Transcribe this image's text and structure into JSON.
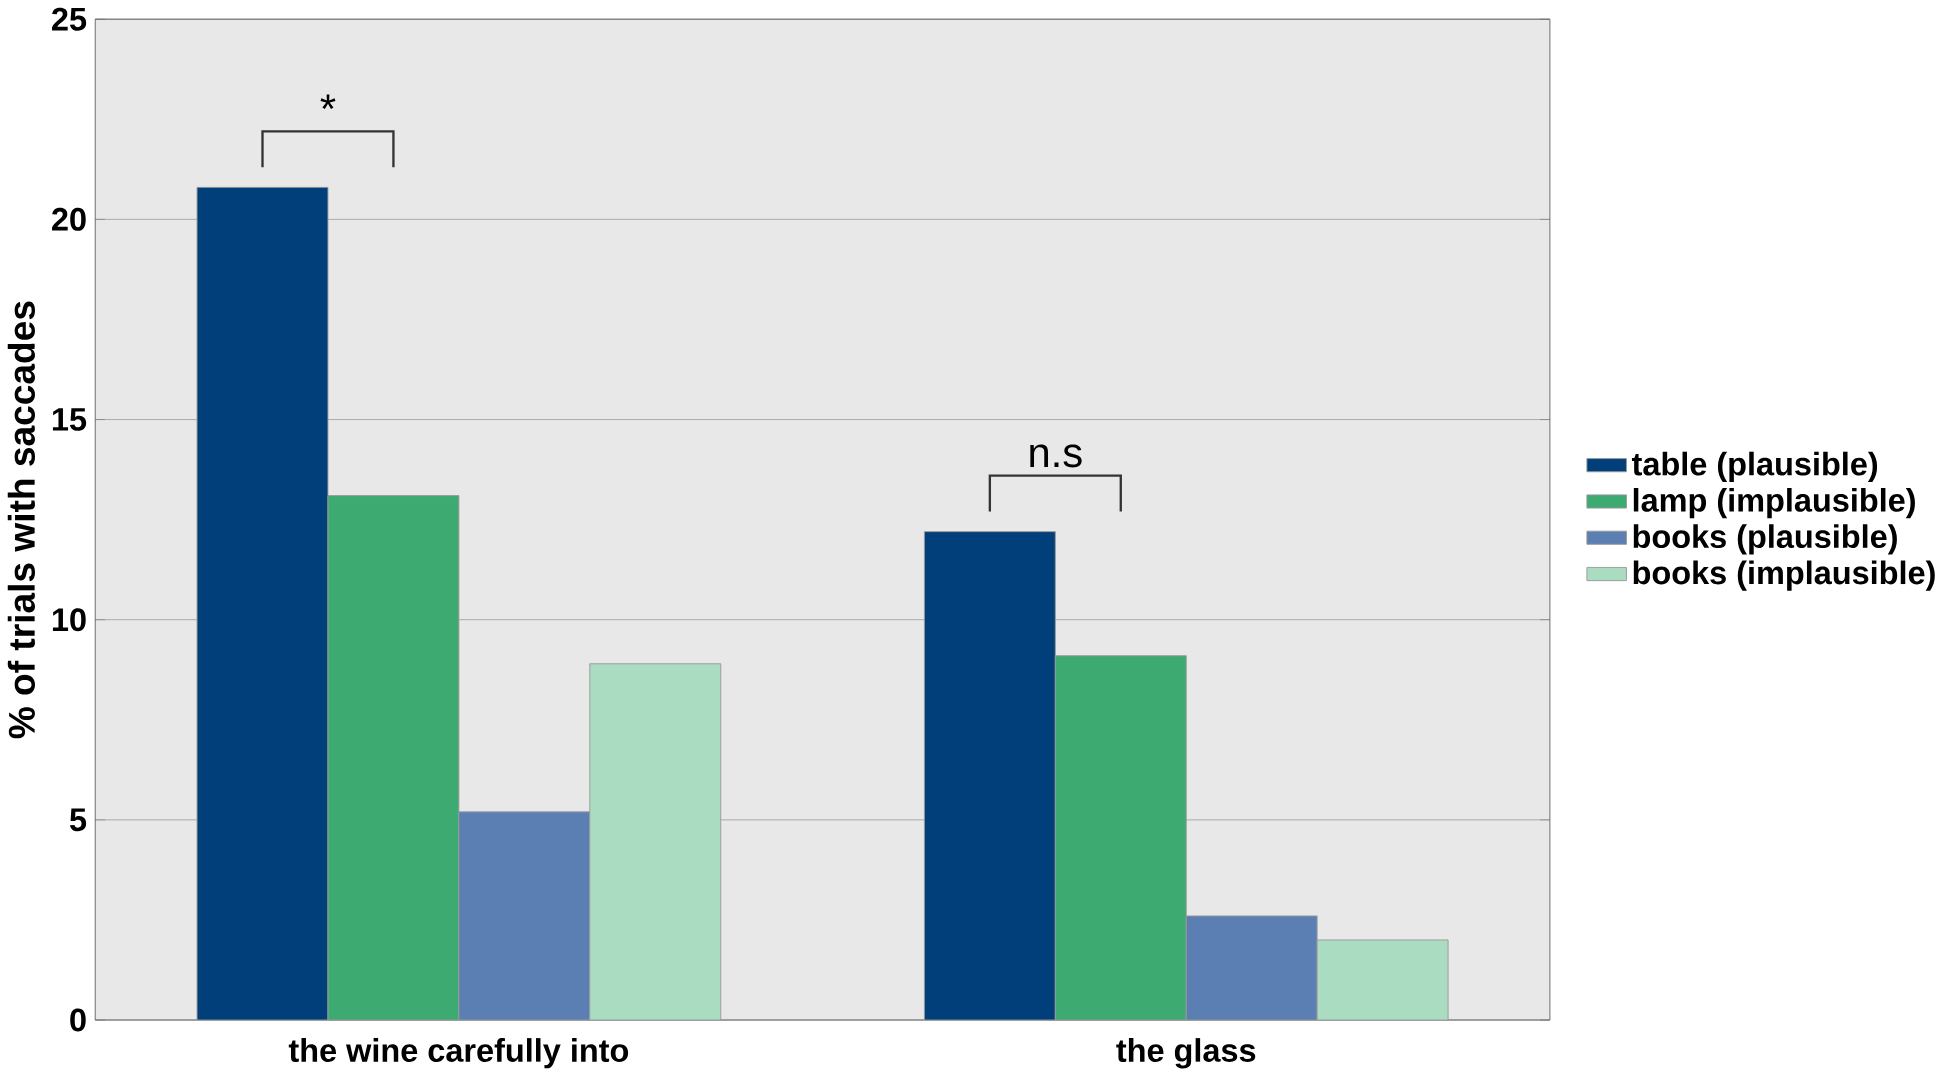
{
  "chart_data": {
    "type": "bar",
    "ylabel": "% of trials with saccades",
    "categories": [
      "the wine carefully into",
      "the glass"
    ],
    "series": [
      {
        "name": "table (plausible)",
        "color": "#003f7a",
        "values": [
          20.8,
          12.2
        ]
      },
      {
        "name": "lamp (implausible)",
        "color": "#3daa72",
        "values": [
          13.1,
          9.1
        ]
      },
      {
        "name": "books (plausible)",
        "color": "#5b7fb3",
        "values": [
          5.2,
          2.6
        ]
      },
      {
        "name": "books (implausible)",
        "color": "#a9dcc0",
        "values": [
          8.9,
          2.0
        ]
      }
    ],
    "ylim": [
      0,
      25
    ],
    "yticks": [
      0,
      5,
      10,
      15,
      20,
      25
    ],
    "grid": "y",
    "legend": "right",
    "annotations": [
      "*",
      "n.s"
    ]
  }
}
